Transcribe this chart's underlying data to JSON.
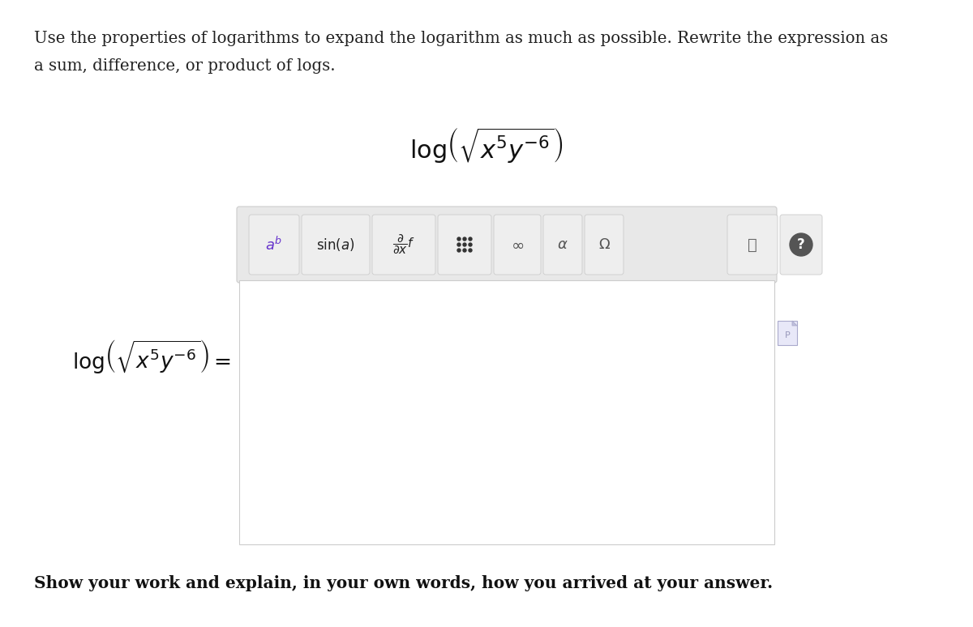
{
  "background_color": "#ffffff",
  "instruction_line1": "Use the properties of logarithms to expand the logarithm as much as possible. Rewrite the expression as",
  "instruction_line2": "a sum, difference, or product of logs.",
  "bottom_text": "Show your work and explain, in your own words, how you arrived at your answer.",
  "toolbar_bg": "#e8e8e8",
  "input_box_bg": "#ffffff",
  "button_bg": "#eeeeee",
  "button_border": "#cccccc",
  "toolbar_border": "#cccccc"
}
